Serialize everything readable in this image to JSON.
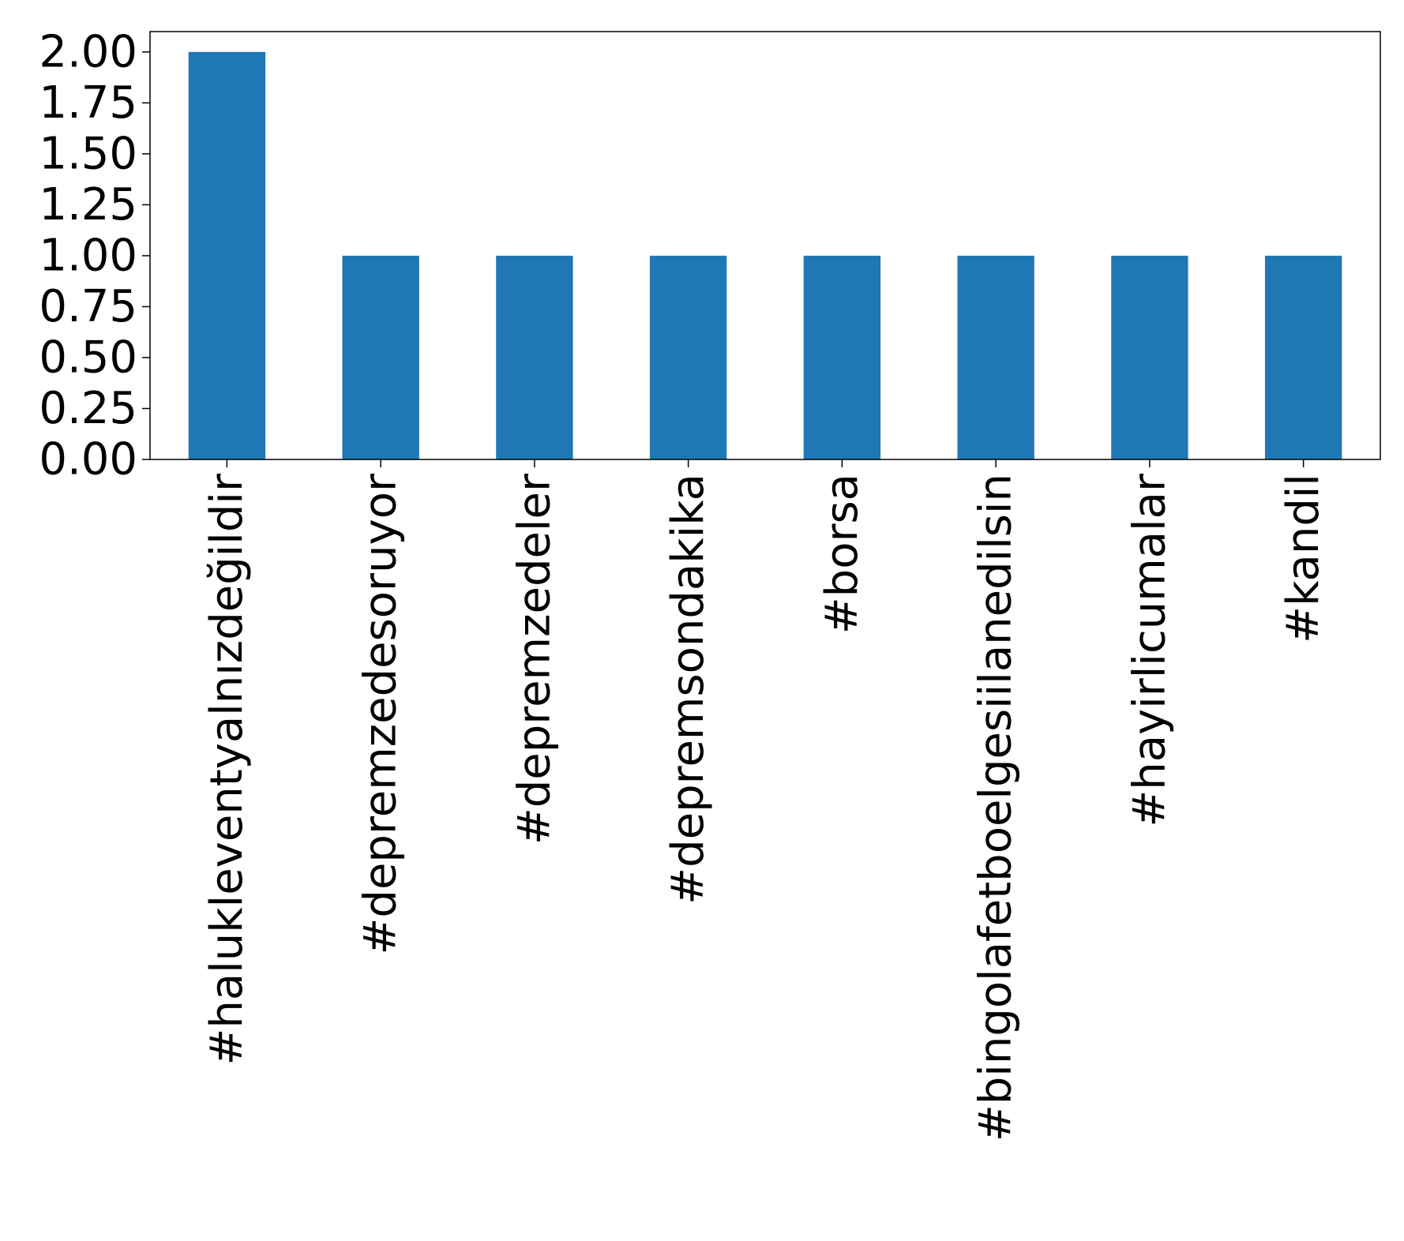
{
  "chart_data": {
    "type": "bar",
    "categories": [
      "#halukleventyalnızdeğildir",
      "#depremzedesoruyor",
      "#depremzedeler",
      "#depremsondakika",
      "#borsa",
      "#bingolafetboelgesiilanedilsin",
      "#hayirlicumalar",
      "#kandil"
    ],
    "values": [
      2,
      1,
      1,
      1,
      1,
      1,
      1,
      1
    ],
    "yticks": [
      "0.00",
      "0.25",
      "0.50",
      "0.75",
      "1.00",
      "1.25",
      "1.50",
      "1.75",
      "2.00"
    ],
    "ylim": [
      0,
      2.1
    ],
    "grid": false,
    "bar_color": "#1f77b4"
  }
}
